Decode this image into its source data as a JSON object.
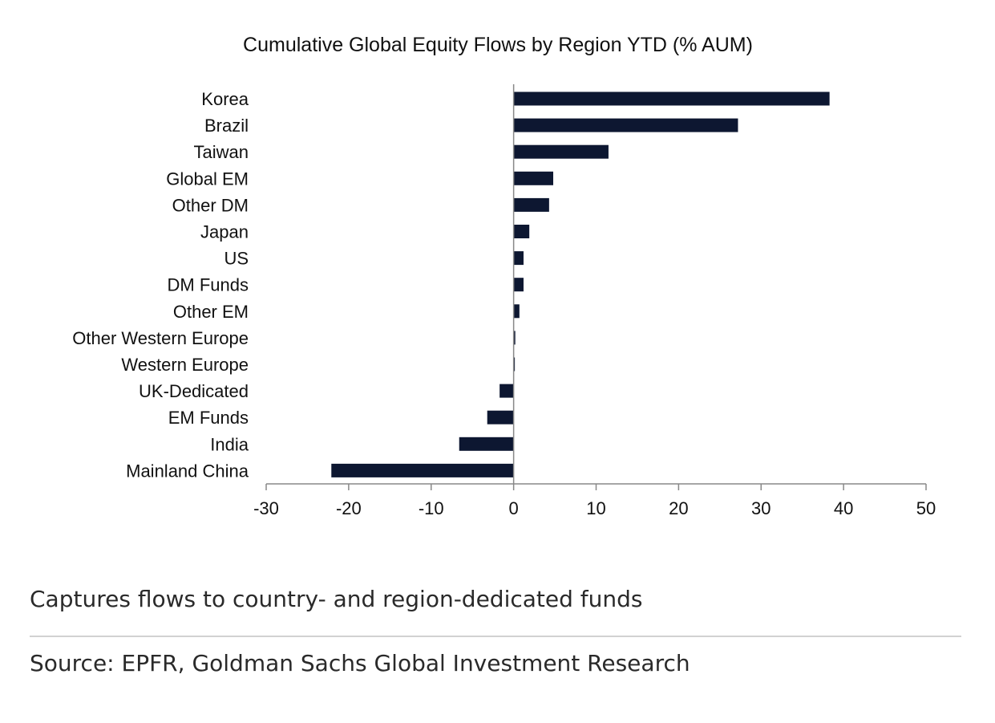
{
  "chart_data": {
    "type": "bar",
    "orientation": "horizontal",
    "title": "Cumulative Global Equity Flows by Region YTD (% AUM)",
    "categories": [
      "Korea",
      "Brazil",
      "Taiwan",
      "Global EM",
      "Other DM",
      "Japan",
      "US",
      "DM Funds",
      "Other EM",
      "Other Western Europe",
      "Western Europe",
      "UK-Dedicated",
      "EM Funds",
      "India",
      "Mainland China"
    ],
    "values": [
      38.3,
      27.2,
      11.5,
      4.8,
      4.3,
      1.9,
      1.2,
      1.2,
      0.7,
      0.2,
      0.1,
      -1.7,
      -3.2,
      -6.6,
      -22.1
    ],
    "xlim": [
      -30,
      50
    ],
    "xticks": [
      -30,
      -20,
      -10,
      0,
      10,
      20,
      30,
      40,
      50
    ],
    "xtick_labels": [
      "-30",
      "-20",
      "-10",
      "0",
      "10",
      "20",
      "30",
      "40",
      "50"
    ],
    "xlabel": "",
    "ylabel": "",
    "grid": false,
    "legend": "none",
    "bar_color": "#0d1731",
    "axis_color": "#888888"
  },
  "caption": "Captures flows to country- and region-dedicated funds",
  "source": "Source: EPFR, Goldman Sachs Global Investment Research"
}
